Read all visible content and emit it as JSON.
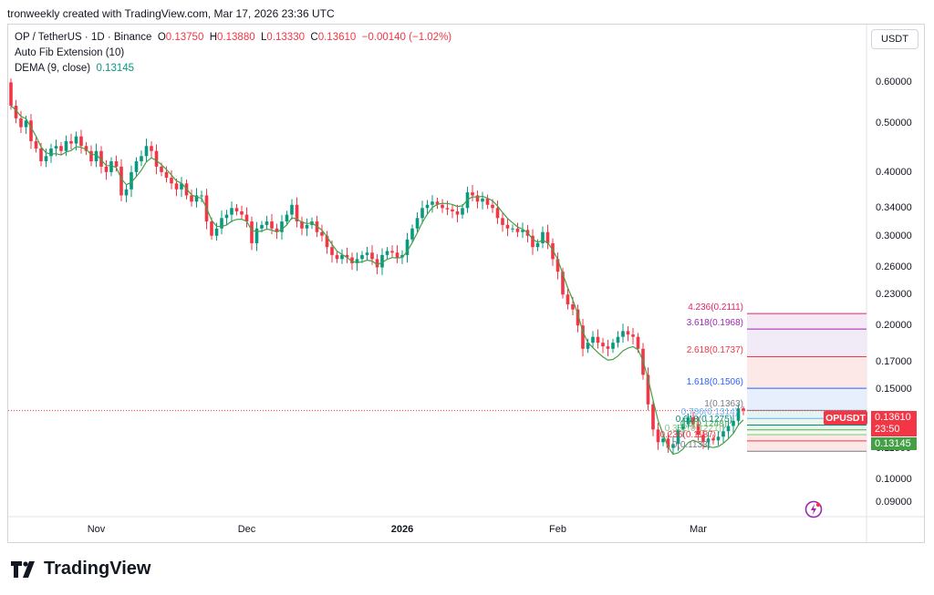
{
  "header": {
    "caption": "tronweekly created with TradingView.com, Mar 17, 2026 23:36 UTC"
  },
  "legend": {
    "symbol": "OP / TetherUS · 1D · Binance",
    "o_label": "O",
    "o_val": "0.13750",
    "h_label": "H",
    "h_val": "0.13880",
    "l_label": "L",
    "l_val": "0.13330",
    "c_label": "C",
    "c_val": "0.13610",
    "change": "−0.00140 (−1.02%)",
    "fib_name": "Auto Fib Extension (10)",
    "dema_name": "DEMA (9, close)",
    "dema_val": "0.13145"
  },
  "currency_button": "USDT",
  "price_axis": {
    "labels": [
      "0.60000",
      "0.50000",
      "0.40000",
      "0.34000",
      "0.30000",
      "0.26000",
      "0.23000",
      "0.20000",
      "0.17000",
      "0.15000",
      "0.11500",
      "0.10000",
      "0.09000"
    ],
    "values": [
      0.6,
      0.5,
      0.4,
      0.34,
      0.3,
      0.26,
      0.23,
      0.2,
      0.17,
      0.15,
      0.115,
      0.1,
      0.09
    ]
  },
  "time_axis": [
    {
      "label": "Nov",
      "index": 17,
      "bold": false
    },
    {
      "label": "Dec",
      "index": 47,
      "bold": false
    },
    {
      "label": "2026",
      "index": 78,
      "bold": true
    },
    {
      "label": "Feb",
      "index": 109,
      "bold": false
    },
    {
      "label": "Mar",
      "index": 137,
      "bold": false
    }
  ],
  "current": {
    "symbol": "OPUSDT",
    "price": "0.13610",
    "countdown": "23:50",
    "dema": "0.13145"
  },
  "fib_levels": [
    {
      "label": "4.236(0.2111)",
      "ratio": "4.236",
      "value": 0.2111,
      "color": "#e91e63"
    },
    {
      "label": "3.618(0.1968)",
      "ratio": "3.618",
      "value": 0.1968,
      "color": "#9c27b0"
    },
    {
      "label": "2.618(0.1737)",
      "ratio": "2.618",
      "value": 0.1737,
      "color": "#f23645"
    },
    {
      "label": "1.618(0.1506)",
      "ratio": "1.618",
      "value": 0.1506,
      "color": "#2962ff"
    },
    {
      "label": "1(0.1363)",
      "ratio": "1",
      "value": 0.1363,
      "color": "#787b86"
    },
    {
      "label": "0.786(0.1314)",
      "ratio": "0.786",
      "value": 0.1314,
      "color": "#64b5f6"
    },
    {
      "label": "0.618(0.1275)",
      "ratio": "0.618",
      "value": 0.1275,
      "color": "#00897b"
    },
    {
      "label": "0.5(0.1248)",
      "ratio": "0.5",
      "value": 0.1248,
      "color": "#4caf50"
    },
    {
      "label": "0.382(0.1221)",
      "ratio": "0.382",
      "value": 0.1221,
      "color": "#81c784"
    },
    {
      "label": "0.236(0.1187)",
      "ratio": "0.236",
      "value": 0.1187,
      "color": "#f23645"
    },
    {
      "label": "0(0.1133)",
      "ratio": "0",
      "value": 0.1133,
      "color": "#787b86"
    }
  ],
  "chart_data": {
    "type": "candlestick",
    "title": "OP / TetherUS · 1D · Binance",
    "y_scale": "log",
    "ylim": [
      0.085,
      0.68
    ],
    "x_start": "2025-10-14",
    "x_end": "2026-03-17",
    "closes": [
      0.54,
      0.51,
      0.49,
      0.505,
      0.46,
      0.445,
      0.42,
      0.43,
      0.445,
      0.45,
      0.44,
      0.46,
      0.455,
      0.47,
      0.45,
      0.44,
      0.42,
      0.44,
      0.41,
      0.4,
      0.42,
      0.41,
      0.36,
      0.37,
      0.4,
      0.42,
      0.43,
      0.45,
      0.44,
      0.41,
      0.4,
      0.39,
      0.38,
      0.37,
      0.38,
      0.36,
      0.35,
      0.36,
      0.36,
      0.32,
      0.3,
      0.31,
      0.325,
      0.33,
      0.34,
      0.335,
      0.33,
      0.32,
      0.29,
      0.31,
      0.315,
      0.32,
      0.31,
      0.305,
      0.32,
      0.33,
      0.345,
      0.32,
      0.31,
      0.315,
      0.32,
      0.305,
      0.3,
      0.285,
      0.275,
      0.27,
      0.275,
      0.272,
      0.265,
      0.27,
      0.275,
      0.278,
      0.27,
      0.26,
      0.275,
      0.28,
      0.278,
      0.272,
      0.275,
      0.295,
      0.31,
      0.325,
      0.34,
      0.345,
      0.35,
      0.345,
      0.34,
      0.338,
      0.335,
      0.33,
      0.34,
      0.365,
      0.36,
      0.35,
      0.355,
      0.345,
      0.34,
      0.325,
      0.315,
      0.31,
      0.31,
      0.305,
      0.308,
      0.3,
      0.285,
      0.29,
      0.305,
      0.29,
      0.27,
      0.255,
      0.23,
      0.22,
      0.215,
      0.2,
      0.18,
      0.185,
      0.19,
      0.185,
      0.182,
      0.18,
      0.185,
      0.19,
      0.195,
      0.192,
      0.19,
      0.18,
      0.16,
      0.14,
      0.125,
      0.118,
      0.12,
      0.115,
      0.117,
      0.125,
      0.128,
      0.132,
      0.128,
      0.122,
      0.118,
      0.12,
      0.119,
      0.121,
      0.124,
      0.127,
      0.13,
      0.1375,
      0.1361
    ],
    "series": [
      {
        "name": "DEMA (9, close)",
        "last": 0.13145,
        "color": "#43a047"
      }
    ]
  }
}
